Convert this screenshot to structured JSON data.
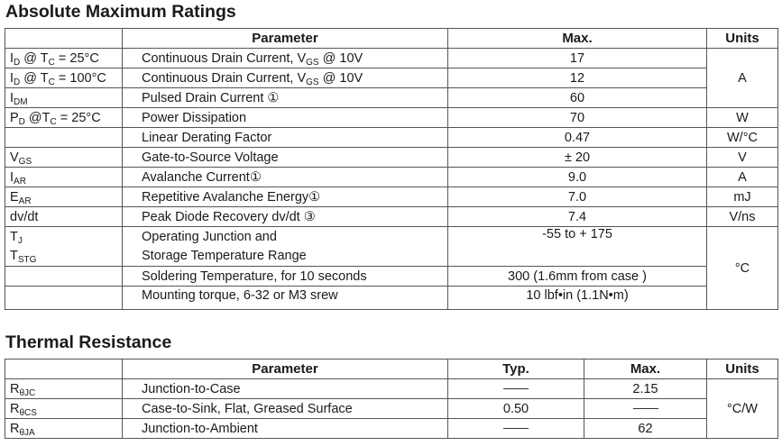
{
  "amr": {
    "title": "Absolute Maximum Ratings",
    "headers": {
      "parameter": "Parameter",
      "max": "Max.",
      "units": "Units"
    },
    "rows": [
      {
        "sym_main": "I",
        "sym_sub": "D",
        "sym_tail": " @ T",
        "sym_sub2": "C",
        "sym_tail2": " = 25°C",
        "param_a": "Continuous Drain Current, V",
        "param_sub": "GS",
        "param_b": " @ 10V",
        "max": "17"
      },
      {
        "sym_main": "I",
        "sym_sub": "D",
        "sym_tail": " @ T",
        "sym_sub2": "C",
        "sym_tail2": " = 100°C",
        "param_a": "Continuous Drain Current, V",
        "param_sub": "GS",
        "param_b": " @ 10V",
        "max": "12"
      },
      {
        "sym_main": "I",
        "sym_sub": "DM",
        "param": "Pulsed Drain Current ①",
        "max": "60"
      },
      {
        "sym_main": "P",
        "sym_sub": "D",
        "sym_tail": " @T",
        "sym_sub2": "C",
        "sym_tail2": " = 25°C",
        "param": "Power Dissipation",
        "max": "70",
        "unit": "W"
      },
      {
        "param": "Linear Derating Factor",
        "max": "0.47",
        "unit": "W/°C"
      },
      {
        "sym_main": "V",
        "sym_sub": "GS",
        "param": "Gate-to-Source Voltage",
        "max": "± 20",
        "unit": "V"
      },
      {
        "sym_main": "I",
        "sym_sub": "AR",
        "param": "Avalanche Current①",
        "max": "9.0",
        "unit": "A"
      },
      {
        "sym_main": "E",
        "sym_sub": "AR",
        "param": "Repetitive Avalanche Energy①",
        "max": "7.0",
        "unit": "mJ"
      },
      {
        "sym": "dv/dt",
        "param": "Peak Diode Recovery dv/dt ③",
        "max": "7.4",
        "unit": "V/ns"
      },
      {
        "sym_main": "T",
        "sym_sub": "J",
        "param": "Operating Junction and",
        "max": "-55  to + 175"
      },
      {
        "sym_main": "T",
        "sym_sub": "STG",
        "param": "Storage Temperature Range"
      },
      {
        "param": "Soldering Temperature, for 10 seconds",
        "max": "300 (1.6mm from case )"
      },
      {
        "param": "Mounting torque, 6-32 or M3 srew",
        "max": "10 lbf•in (1.1N•m)"
      }
    ],
    "unit_current": "A",
    "unit_temp": "°C"
  },
  "thermal": {
    "title": "Thermal Resistance",
    "headers": {
      "parameter": "Parameter",
      "typ": "Typ.",
      "max": "Max.",
      "units": "Units"
    },
    "rows": [
      {
        "sym_main": "R",
        "sym_sub": "θJC",
        "param": "Junction-to-Case",
        "typ": "",
        "max": "2.15"
      },
      {
        "sym_main": "R",
        "sym_sub": "θCS",
        "param": "Case-to-Sink, Flat, Greased Surface",
        "typ": "0.50",
        "max": ""
      },
      {
        "sym_main": "R",
        "sym_sub": "θJA",
        "param": "Junction-to-Ambient",
        "typ": "",
        "max": "62"
      }
    ],
    "unit": "°C/W"
  }
}
